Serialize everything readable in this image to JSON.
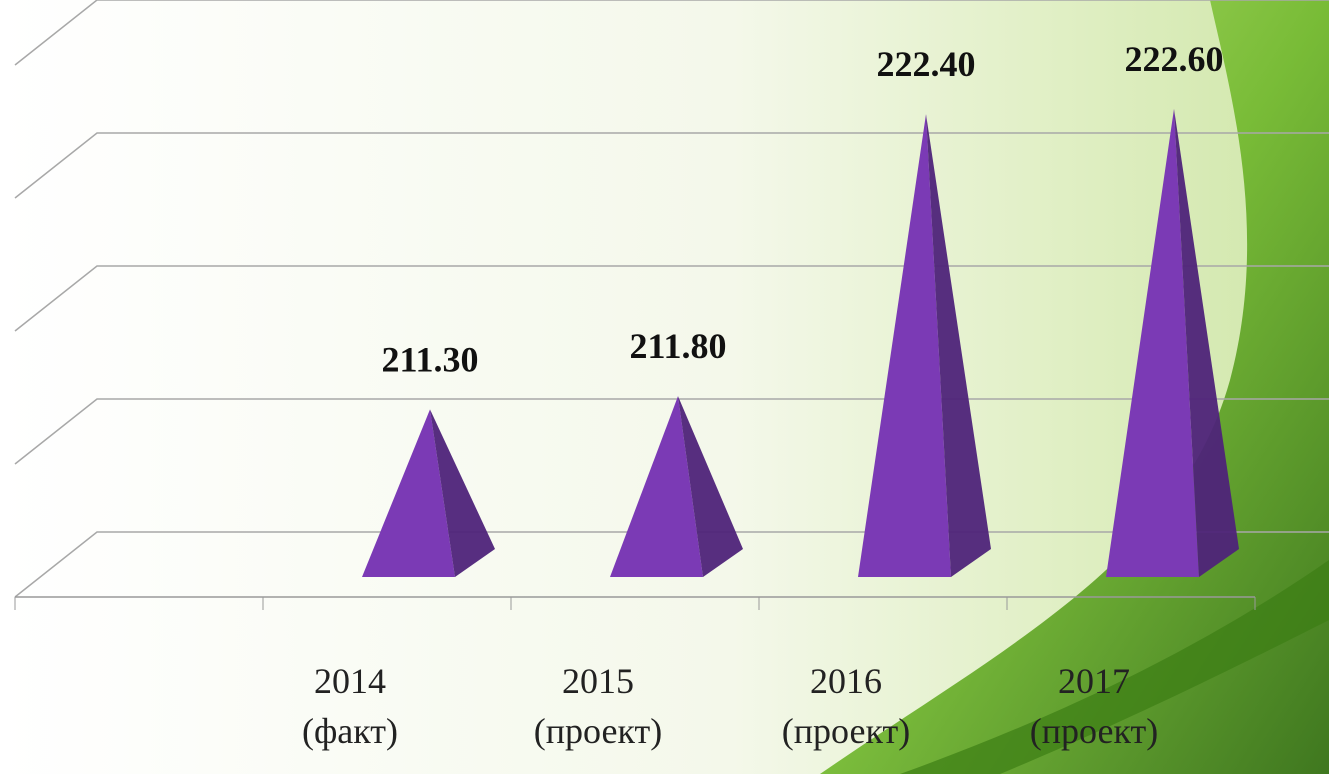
{
  "chart_data": {
    "type": "pyramid",
    "categories": [
      "2014\n(факт)",
      "2015\n(проект)",
      "2016\n(проект)",
      "2017\n(проект)"
    ],
    "values": [
      211.3,
      211.8,
      222.4,
      222.6
    ],
    "value_labels": [
      "211.30",
      "211.80",
      "222.40",
      "222.60"
    ],
    "color": "#7b3ab5",
    "ylim": [
      205,
      225
    ],
    "yticks": [
      205,
      210,
      215,
      220,
      225
    ],
    "grid": true
  }
}
